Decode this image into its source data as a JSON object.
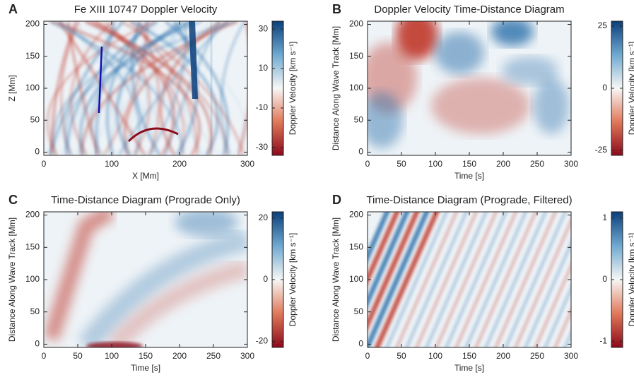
{
  "chart_data": [
    {
      "type": "heatmap",
      "panel_label": "A",
      "title": "Fe XIII 10747 Doppler Velocity",
      "xlabel": "X [Mm]",
      "ylabel": "Z [Mm]",
      "xlim": [
        0,
        300
      ],
      "xticks": [
        0,
        100,
        200,
        300
      ],
      "ylim": [
        -5,
        205
      ],
      "yticks": [
        0,
        50,
        100,
        150,
        200
      ],
      "colorbar": {
        "label": "Doppler Velocity [km s⁻¹]",
        "lim": [
          -34,
          34
        ],
        "ticks": [
          30,
          10,
          -10,
          -30
        ]
      }
    },
    {
      "type": "heatmap",
      "panel_label": "B",
      "title": "Doppler Velocity Time-Distance Diagram",
      "xlabel": "Time [s]",
      "ylabel": "Distance Along Wave Track [Mm]",
      "xlim": [
        0,
        300
      ],
      "xticks": [
        0,
        50,
        100,
        150,
        200,
        250,
        300
      ],
      "ylim": [
        -5,
        205
      ],
      "yticks": [
        0,
        50,
        100,
        150,
        200
      ],
      "colorbar": {
        "label": "Doppler Velocity [km s⁻¹]",
        "lim": [
          -27,
          27
        ],
        "ticks": [
          25,
          0,
          -25
        ]
      }
    },
    {
      "type": "heatmap",
      "panel_label": "C",
      "title": "Time-Distance Diagram (Prograde Only)",
      "xlabel": "Time [s]",
      "ylabel": "Distance Along Wave Track [Mm]",
      "xlim": [
        0,
        300
      ],
      "xticks": [
        0,
        50,
        100,
        150,
        200,
        250,
        300
      ],
      "ylim": [
        -5,
        205
      ],
      "yticks": [
        0,
        50,
        100,
        150,
        200
      ],
      "colorbar": {
        "label": "Doppler Velocity [km s⁻¹]",
        "lim": [
          -22,
          22
        ],
        "ticks": [
          20,
          0,
          -20
        ]
      }
    },
    {
      "type": "heatmap",
      "panel_label": "D",
      "title": "Time-Distance Diagram (Prograde, Filtered)",
      "xlabel": "Time [s]",
      "ylabel": "Distance Along Wave Track [Mm]",
      "xlim": [
        0,
        300
      ],
      "xticks": [
        0,
        50,
        100,
        150,
        200,
        250,
        300
      ],
      "ylim": [
        -5,
        205
      ],
      "yticks": [
        0,
        50,
        100,
        150,
        200
      ],
      "colorbar": {
        "label": "Doppler Velocity [km s⁻¹]",
        "lim": [
          -1.1,
          1.1
        ],
        "ticks": [
          1,
          0,
          -1
        ]
      }
    }
  ]
}
